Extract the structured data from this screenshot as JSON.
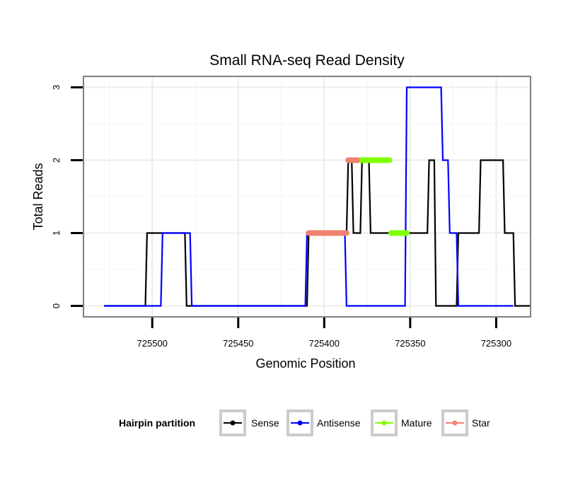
{
  "chart_data": {
    "type": "line",
    "title": "Small RNA-seq Read Density",
    "xlabel": "Genomic Position",
    "ylabel": "Total Reads",
    "xlim": [
      725280,
      725540
    ],
    "x_reversed": true,
    "ylim": [
      -0.15,
      3.15
    ],
    "x_ticks": [
      725500,
      725450,
      725400,
      725350,
      725300
    ],
    "x_tick_labels": [
      "725500",
      "725450",
      "725400",
      "725350",
      "725300"
    ],
    "y_ticks": [
      0,
      1,
      2,
      3
    ],
    "y_tick_labels": [
      "0",
      "1",
      "2",
      "3"
    ],
    "grid": true,
    "legend_position": "bottom",
    "legend": {
      "title": "Hairpin partition",
      "entries": [
        "Sense",
        "Antisense",
        "Mature",
        "Star"
      ]
    },
    "series": [
      {
        "name": "Sense",
        "color": "#000000",
        "x": [
          725528,
          725504,
          725503,
          725481,
          725480,
          725410,
          725409,
          725387,
          725386,
          725384,
          725383,
          725379,
          725378,
          725374,
          725373,
          725340,
          725339,
          725336,
          725335,
          725323,
          725322,
          725310,
          725309,
          725296,
          725295,
          725290,
          725289,
          725280
        ],
        "y": [
          0,
          0,
          1,
          1,
          0,
          0,
          1,
          1,
          2,
          2,
          1,
          1,
          2,
          2,
          1,
          1,
          2,
          2,
          0,
          0,
          1,
          1,
          2,
          2,
          1,
          1,
          0,
          0
        ]
      },
      {
        "name": "Antisense",
        "color": "#0000ff",
        "x": [
          725528,
          725495,
          725494,
          725478,
          725477,
          725411,
          725410,
          725388,
          725387,
          725353,
          725352,
          725332,
          725331,
          725328,
          725327,
          725324,
          725323,
          725322,
          725321,
          725290
        ],
        "y": [
          0,
          0,
          1,
          1,
          0,
          0,
          1,
          1,
          0,
          0,
          3,
          3,
          2,
          2,
          1,
          1,
          1,
          0,
          0,
          0
        ]
      },
      {
        "name": "Mature",
        "color": "#7fff00",
        "segments": [
          {
            "x": [
              725380,
              725362
            ],
            "y": 2
          },
          {
            "x": [
              725361,
              725352
            ],
            "y": 1
          }
        ]
      },
      {
        "name": "Star",
        "color": "#f08070",
        "segments": [
          {
            "x": [
              725409,
              725387
            ],
            "y": 1
          },
          {
            "x": [
              725386,
              725381
            ],
            "y": 2
          }
        ]
      }
    ]
  }
}
